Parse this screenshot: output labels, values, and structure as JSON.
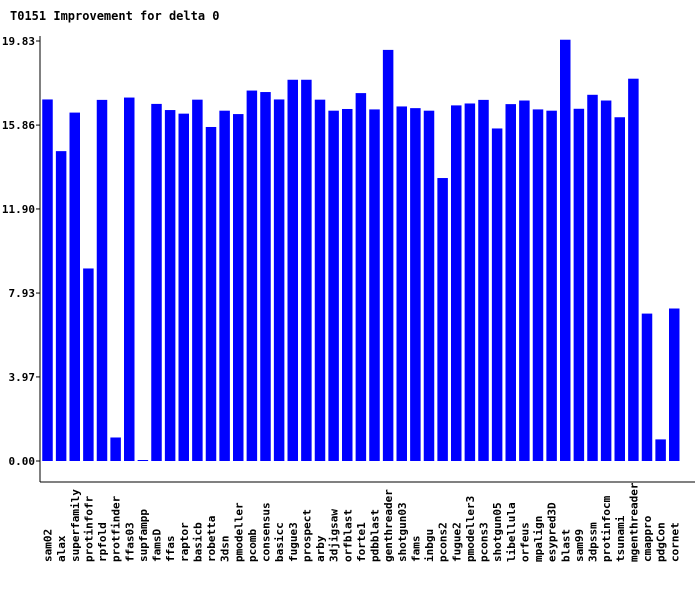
{
  "chart_data": {
    "type": "bar",
    "title": "T0151 Improvement for delta 0",
    "xlabel": "",
    "ylabel": "",
    "yticks": [
      "0.00",
      "3.97",
      "7.93",
      "11.90",
      "15.86",
      "19.83"
    ],
    "ylim": [
      0,
      19.83
    ],
    "bar_color": "#0000ff",
    "grid": false,
    "legend": "none",
    "categories": [
      "sam02",
      "alax",
      "superfamily",
      "protinfofr",
      "rpfold",
      "protfinder",
      "ffas03",
      "supfampp",
      "famsD",
      "ffas",
      "raptor",
      "basicb",
      "robetta",
      "3dsn",
      "pmodeller",
      "pcomb",
      "consensus",
      "basicc",
      "fugue3",
      "prospect",
      "arby",
      "3djigsaw",
      "orfblast",
      "forte1",
      "pdbblast",
      "genthreader",
      "shotgun03",
      "fams",
      "inbgu",
      "pcons2",
      "fugue2",
      "pmodeller3",
      "pcons3",
      "shotgun05",
      "libellula",
      "orfeus",
      "mpalign",
      "esypred3D",
      "blast",
      "sam99",
      "3dpssm",
      "protinfocm",
      "tsunami",
      "mgenthreader",
      "cmappro",
      "pdgCon",
      "cornet"
    ],
    "values": [
      17.07,
      14.63,
      16.45,
      9.09,
      17.05,
      1.11,
      17.16,
      0.03,
      16.86,
      16.57,
      16.4,
      17.06,
      15.77,
      16.54,
      16.38,
      17.49,
      17.42,
      17.07,
      18.0,
      18.0,
      17.06,
      16.54,
      16.62,
      17.37,
      16.6,
      19.41,
      16.74,
      16.66,
      16.54,
      13.36,
      16.79,
      16.88,
      17.05,
      15.7,
      16.85,
      17.02,
      16.6,
      16.54,
      19.89,
      16.63,
      17.29,
      17.02,
      16.23,
      18.05,
      6.96,
      1.02,
      7.2
    ]
  }
}
